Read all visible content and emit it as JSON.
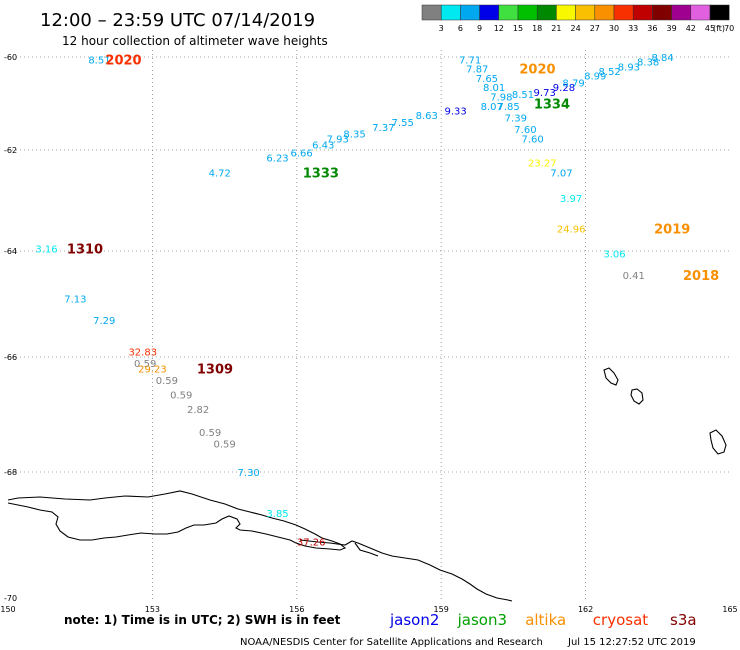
{
  "header": {
    "title": "12:00 – 23:59 UTC 07/14/2019",
    "subtitle": "12 hour collection of altimeter wave heights"
  },
  "legend": {
    "unit": "(ft)",
    "scale": [
      {
        "label": "3",
        "color": "#808080"
      },
      {
        "label": "6",
        "color": "#00e8f0"
      },
      {
        "label": "9",
        "color": "#00a8f0"
      },
      {
        "label": "12",
        "color": "#0000e8"
      },
      {
        "label": "15",
        "color": "#40e040"
      },
      {
        "label": "18",
        "color": "#00c000"
      },
      {
        "label": "21",
        "color": "#008800"
      },
      {
        "label": "24",
        "color": "#f8f800"
      },
      {
        "label": "27",
        "color": "#f8c000"
      },
      {
        "label": "30",
        "color": "#f89000"
      },
      {
        "label": "33",
        "color": "#f83000"
      },
      {
        "label": "36",
        "color": "#c00000"
      },
      {
        "label": "39",
        "color": "#800000"
      },
      {
        "label": "42",
        "color": "#a00090"
      },
      {
        "label": "45",
        "color": "#e060e0"
      },
      {
        "label": "70",
        "color": "#000000"
      }
    ]
  },
  "axes": {
    "x_ticks": [
      "150",
      "153",
      "156",
      "159",
      "162",
      "165"
    ],
    "y_ticks": [
      "-60",
      "-62",
      "-64",
      "-66",
      "-68",
      "-70"
    ]
  },
  "observations": [
    {
      "value": "8.51",
      "lon": 151.9,
      "lat": -60.05,
      "color": "#00a8f0"
    },
    {
      "value": "7.71",
      "lon": 159.6,
      "lat": -60.05,
      "color": "#00a8f0"
    },
    {
      "value": "7.87",
      "lon": 159.75,
      "lat": -60.25,
      "color": "#00a8f0"
    },
    {
      "value": "7.65",
      "lon": 159.95,
      "lat": -60.45,
      "color": "#00a8f0"
    },
    {
      "value": "8.01",
      "lon": 160.1,
      "lat": -60.65,
      "color": "#00a8f0"
    },
    {
      "value": "7.98",
      "lon": 160.25,
      "lat": -60.85,
      "color": "#00a8f0"
    },
    {
      "value": "8.51",
      "lon": 160.7,
      "lat": -60.8,
      "color": "#00a8f0"
    },
    {
      "value": "8.07",
      "lon": 160.05,
      "lat": -61.05,
      "color": "#00a8f0"
    },
    {
      "value": "7.85",
      "lon": 160.4,
      "lat": -61.05,
      "color": "#00a8f0"
    },
    {
      "value": "7.39",
      "lon": 160.55,
      "lat": -61.3,
      "color": "#00a8f0"
    },
    {
      "value": "7.60",
      "lon": 160.75,
      "lat": -61.55,
      "color": "#00a8f0"
    },
    {
      "value": "7.60",
      "lon": 160.9,
      "lat": -61.75,
      "color": "#00a8f0"
    },
    {
      "value": "9.73",
      "lon": 161.15,
      "lat": -60.75,
      "color": "#0000e8"
    },
    {
      "value": "9.28",
      "lon": 161.55,
      "lat": -60.65,
      "color": "#0000e8"
    },
    {
      "value": "9.33",
      "lon": 159.3,
      "lat": -61.15,
      "color": "#0000e8"
    },
    {
      "value": "8.79",
      "lon": 161.75,
      "lat": -60.55,
      "color": "#00a8f0"
    },
    {
      "value": "8.99",
      "lon": 162.2,
      "lat": -60.4,
      "color": "#00a8f0"
    },
    {
      "value": "8.52",
      "lon": 162.5,
      "lat": -60.3,
      "color": "#00a8f0"
    },
    {
      "value": "8.93",
      "lon": 162.9,
      "lat": -60.2,
      "color": "#00a8f0"
    },
    {
      "value": "8.38",
      "lon": 163.3,
      "lat": -60.1,
      "color": "#00a8f0"
    },
    {
      "value": "8.84",
      "lon": 163.6,
      "lat": -60.0,
      "color": "#00a8f0"
    },
    {
      "value": "8.63",
      "lon": 158.7,
      "lat": -61.25,
      "color": "#00a8f0"
    },
    {
      "value": "7.55",
      "lon": 158.2,
      "lat": -61.4,
      "color": "#00a8f0"
    },
    {
      "value": "7.37",
      "lon": 157.8,
      "lat": -61.5,
      "color": "#00a8f0"
    },
    {
      "value": "8.35",
      "lon": 157.2,
      "lat": -61.65,
      "color": "#00a8f0"
    },
    {
      "value": "7.93",
      "lon": 156.85,
      "lat": -61.75,
      "color": "#00a8f0"
    },
    {
      "value": "6.43",
      "lon": 156.55,
      "lat": -61.88,
      "color": "#00a8f0"
    },
    {
      "value": "6.66",
      "lon": 156.1,
      "lat": -62.05,
      "color": "#00a8f0"
    },
    {
      "value": "6.23",
      "lon": 155.6,
      "lat": -62.15,
      "color": "#00a8f0"
    },
    {
      "value": "4.72",
      "lon": 154.4,
      "lat": -62.45,
      "color": "#00a8f0"
    },
    {
      "value": "23.27",
      "lon": 161.1,
      "lat": -62.25,
      "color": "#f8f800"
    },
    {
      "value": "7.07",
      "lon": 161.5,
      "lat": -62.45,
      "color": "#00a8f0"
    },
    {
      "value": "3.97",
      "lon": 161.7,
      "lat": -62.95,
      "color": "#00e8f0"
    },
    {
      "value": "24.96",
      "lon": 161.7,
      "lat": -63.55,
      "color": "#f8c000"
    },
    {
      "value": "3.06",
      "lon": 162.6,
      "lat": -64.05,
      "color": "#00e8f0"
    },
    {
      "value": "0.41",
      "lon": 163.0,
      "lat": -64.45,
      "color": "#808080"
    },
    {
      "value": "3.16",
      "lon": 150.8,
      "lat": -63.95,
      "color": "#00e8f0"
    },
    {
      "value": "7.13",
      "lon": 151.4,
      "lat": -64.9,
      "color": "#00a8f0"
    },
    {
      "value": "7.29",
      "lon": 152.0,
      "lat": -65.3,
      "color": "#00a8f0"
    },
    {
      "value": "32.83",
      "lon": 152.8,
      "lat": -65.9,
      "color": "#f83000"
    },
    {
      "value": "0.59",
      "lon": 152.85,
      "lat": -66.1,
      "color": "#808080"
    },
    {
      "value": "29.23",
      "lon": 153.0,
      "lat": -66.2,
      "color": "#f89000"
    },
    {
      "value": "0.59",
      "lon": 153.3,
      "lat": -66.4,
      "color": "#808080"
    },
    {
      "value": "0.59",
      "lon": 153.6,
      "lat": -66.65,
      "color": "#808080"
    },
    {
      "value": "2.82",
      "lon": 153.95,
      "lat": -66.9,
      "color": "#808080"
    },
    {
      "value": "0.59",
      "lon": 154.2,
      "lat": -67.3,
      "color": "#808080"
    },
    {
      "value": "0.59",
      "lon": 154.5,
      "lat": -67.5,
      "color": "#808080"
    },
    {
      "value": "7.30",
      "lon": 155.0,
      "lat": -68.0,
      "color": "#00a8f0"
    },
    {
      "value": "3.85",
      "lon": 155.6,
      "lat": -68.65,
      "color": "#00e8f0"
    },
    {
      "value": "37.26",
      "lon": 156.3,
      "lat": -69.1,
      "color": "#c00000"
    }
  ],
  "passes": [
    {
      "label": "2020",
      "lon": 152.4,
      "lat": -60.05,
      "color": "#f83000"
    },
    {
      "label": "2020",
      "lon": 161.0,
      "lat": -60.25,
      "color": "#f89000"
    },
    {
      "label": "1334",
      "lon": 161.3,
      "lat": -61.0,
      "color": "#008800"
    },
    {
      "label": "1333",
      "lon": 156.5,
      "lat": -62.45,
      "color": "#008800"
    },
    {
      "label": "2019",
      "lon": 163.8,
      "lat": -63.55,
      "color": "#f89000"
    },
    {
      "label": "2018",
      "lon": 164.4,
      "lat": -64.45,
      "color": "#f89000"
    },
    {
      "label": "1310",
      "lon": 151.6,
      "lat": -63.95,
      "color": "#800000"
    },
    {
      "label": "1309",
      "lon": 154.3,
      "lat": -66.2,
      "color": "#800000"
    }
  ],
  "footer": {
    "note": "note: 1) Time is in UTC; 2) SWH is in feet",
    "satellites": [
      {
        "name": "jason2",
        "color": "#0000e8"
      },
      {
        "name": "jason3",
        "color": "#00a000"
      },
      {
        "name": "altika",
        "color": "#f89000"
      },
      {
        "name": "cryosat",
        "color": "#f83000"
      },
      {
        "name": "s3a",
        "color": "#800000"
      }
    ],
    "credit": "NOAA/NESDIS Center for Satellite Applications and Research",
    "timestamp": "Jul 15 12:27:52 UTC 2019"
  }
}
